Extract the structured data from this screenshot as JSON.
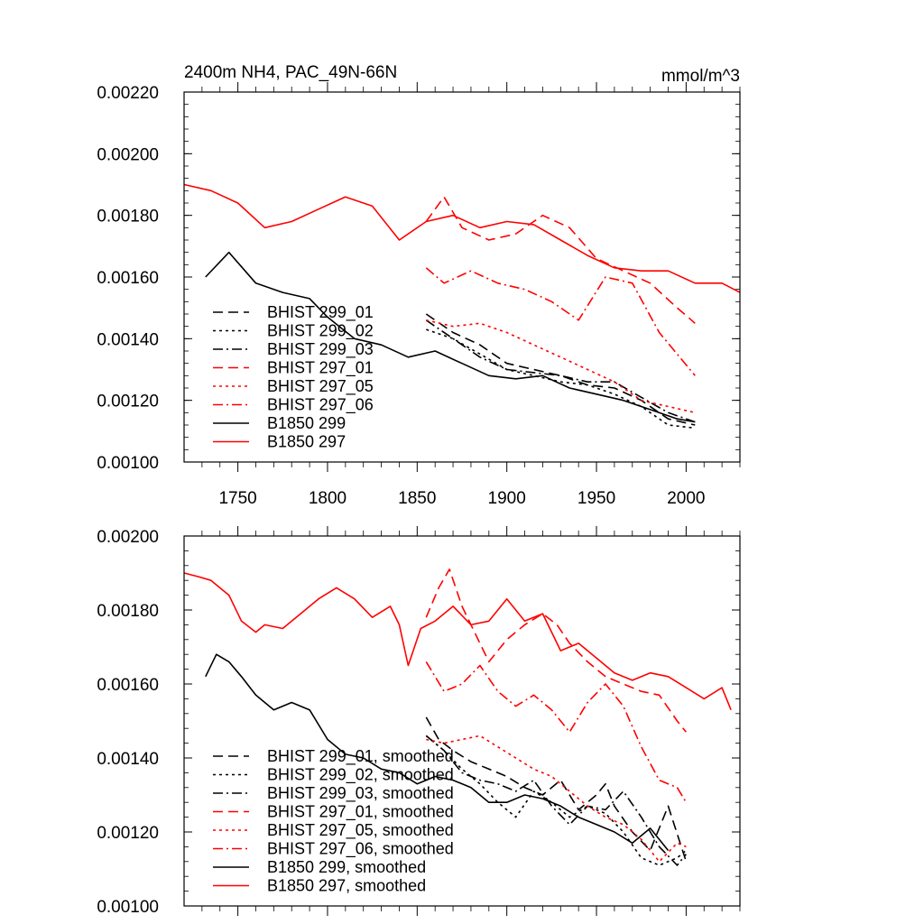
{
  "colors": {
    "black": "#000000",
    "red": "#ff0000"
  },
  "chart_data": [
    {
      "type": "line",
      "title": "2400m NH4, PAC_49N-66N",
      "units": "mmol/m^3",
      "xlim": [
        1720,
        2030
      ],
      "ylim": [
        0.001,
        0.0022
      ],
      "xticks": [
        1750,
        1800,
        1850,
        1900,
        1950,
        2000
      ],
      "xtick_labels": [
        "1750",
        "1800",
        "1850",
        "1900",
        "1950",
        "2000"
      ],
      "yticks": [
        0.001,
        0.0012,
        0.0014,
        0.0016,
        0.0018,
        0.002,
        0.0022
      ],
      "ytick_labels": [
        "0.00100",
        "0.00120",
        "0.00140",
        "0.00160",
        "0.00180",
        "0.00200",
        "0.00220"
      ],
      "legend_position": "lower-left",
      "series": [
        {
          "name": "BHIST 299_01",
          "color": "black",
          "dash": "dashed",
          "x": [
            1855,
            1870,
            1885,
            1900,
            1915,
            1930,
            1945,
            1960,
            1975,
            1990,
            2005
          ],
          "y": [
            0.00148,
            0.00142,
            0.00138,
            0.00132,
            0.0013,
            0.00128,
            0.00125,
            0.00124,
            0.0012,
            0.00114,
            0.00112
          ]
        },
        {
          "name": "BHIST 299_02",
          "color": "black",
          "dash": "dotted",
          "x": [
            1855,
            1870,
            1885,
            1900,
            1915,
            1930,
            1945,
            1960,
            1975,
            1990,
            2005
          ],
          "y": [
            0.00143,
            0.0014,
            0.00135,
            0.0013,
            0.00128,
            0.00126,
            0.00125,
            0.00122,
            0.00118,
            0.00112,
            0.00111
          ]
        },
        {
          "name": "BHIST 299_03",
          "color": "black",
          "dash": "dashdot",
          "x": [
            1855,
            1870,
            1885,
            1900,
            1915,
            1930,
            1945,
            1960,
            1975,
            1990,
            2005
          ],
          "y": [
            0.00146,
            0.0014,
            0.00134,
            0.0013,
            0.00129,
            0.00128,
            0.00126,
            0.00126,
            0.00121,
            0.00116,
            0.00113
          ]
        },
        {
          "name": "BHIST 297_01",
          "color": "red",
          "dash": "dashed",
          "x": [
            1855,
            1865,
            1875,
            1890,
            1905,
            1920,
            1935,
            1950,
            1965,
            1980,
            1995,
            2005
          ],
          "y": [
            0.00178,
            0.00186,
            0.00176,
            0.00172,
            0.00174,
            0.0018,
            0.00176,
            0.00166,
            0.00162,
            0.00158,
            0.0015,
            0.00145
          ]
        },
        {
          "name": "BHIST 297_05",
          "color": "red",
          "dash": "dotted",
          "x": [
            1855,
            1870,
            1885,
            1900,
            1915,
            1930,
            1945,
            1960,
            1975,
            1990,
            2005
          ],
          "y": [
            0.00146,
            0.00144,
            0.00145,
            0.00142,
            0.00138,
            0.00134,
            0.0013,
            0.00126,
            0.0012,
            0.00118,
            0.00116
          ]
        },
        {
          "name": "BHIST 297_06",
          "color": "red",
          "dash": "dashdot",
          "x": [
            1855,
            1865,
            1880,
            1895,
            1910,
            1925,
            1940,
            1955,
            1970,
            1985,
            2005
          ],
          "y": [
            0.00163,
            0.00158,
            0.00162,
            0.00158,
            0.00156,
            0.00152,
            0.00146,
            0.0016,
            0.00158,
            0.00142,
            0.00128
          ]
        },
        {
          "name": "B1850 299",
          "color": "black",
          "dash": "solid",
          "x": [
            1732,
            1745,
            1760,
            1775,
            1790,
            1800,
            1815,
            1830,
            1845,
            1860,
            1875,
            1890,
            1905,
            1920,
            1935,
            1950,
            1965,
            1980,
            1995,
            2005
          ],
          "y": [
            0.0016,
            0.00168,
            0.00158,
            0.00155,
            0.00153,
            0.00147,
            0.0014,
            0.00138,
            0.00134,
            0.00136,
            0.00132,
            0.00128,
            0.00127,
            0.00128,
            0.00124,
            0.00122,
            0.0012,
            0.00117,
            0.00114,
            0.00113
          ]
        },
        {
          "name": "B1850 297",
          "color": "red",
          "dash": "solid",
          "x": [
            1720,
            1735,
            1750,
            1765,
            1780,
            1795,
            1810,
            1825,
            1840,
            1855,
            1870,
            1885,
            1900,
            1915,
            1930,
            1945,
            1960,
            1975,
            1990,
            2005,
            2020,
            2030
          ],
          "y": [
            0.0019,
            0.00188,
            0.00184,
            0.00176,
            0.00178,
            0.00182,
            0.00186,
            0.00183,
            0.00172,
            0.00178,
            0.0018,
            0.00176,
            0.00178,
            0.00177,
            0.00172,
            0.00167,
            0.00163,
            0.00162,
            0.00162,
            0.00158,
            0.00158,
            0.00155
          ]
        }
      ]
    },
    {
      "type": "line",
      "title": "",
      "xlim": [
        1720,
        2030
      ],
      "ylim": [
        0.001,
        0.002
      ],
      "xticks": [
        1750,
        1800,
        1850,
        1900,
        1950,
        2000
      ],
      "xtick_labels": [],
      "yticks": [
        0.001,
        0.0012,
        0.0014,
        0.0016,
        0.0018,
        0.002
      ],
      "ytick_labels": [
        "0.00100",
        "0.00120",
        "0.00140",
        "0.00160",
        "0.00180",
        "0.00200"
      ],
      "legend_position": "lower-left",
      "series": [
        {
          "name": "BHIST 299_01, smoothed",
          "color": "black",
          "dash": "dashed",
          "x": [
            1855,
            1862,
            1870,
            1880,
            1890,
            1900,
            1910,
            1920,
            1930,
            1940,
            1950,
            1955,
            1960,
            1970,
            1980,
            1990,
            2000
          ],
          "y": [
            0.00151,
            0.00145,
            0.00142,
            0.00139,
            0.00137,
            0.00135,
            0.00132,
            0.0013,
            0.00134,
            0.00126,
            0.0013,
            0.00133,
            0.00127,
            0.0012,
            0.00115,
            0.00127,
            0.00112
          ]
        },
        {
          "name": "BHIST 299_02, smoothed",
          "color": "black",
          "dash": "dotted",
          "x": [
            1855,
            1865,
            1875,
            1885,
            1895,
            1905,
            1915,
            1925,
            1935,
            1945,
            1955,
            1965,
            1975,
            1985,
            1995,
            2000
          ],
          "y": [
            0.00146,
            0.00142,
            0.00137,
            0.00133,
            0.00128,
            0.00124,
            0.00131,
            0.00128,
            0.00124,
            0.00127,
            0.00125,
            0.0012,
            0.00113,
            0.00111,
            0.00113,
            0.00115
          ]
        },
        {
          "name": "BHIST 299_03, smoothed",
          "color": "black",
          "dash": "dashdot",
          "x": [
            1855,
            1865,
            1875,
            1885,
            1895,
            1905,
            1915,
            1925,
            1935,
            1945,
            1955,
            1965,
            1975,
            1985,
            1995,
            2000
          ],
          "y": [
            0.00146,
            0.00142,
            0.00136,
            0.00134,
            0.00133,
            0.00131,
            0.00134,
            0.00127,
            0.00122,
            0.00127,
            0.00126,
            0.00131,
            0.00124,
            0.00116,
            0.00111,
            0.00114
          ]
        },
        {
          "name": "BHIST 297_01, smoothed",
          "color": "red",
          "dash": "dashed",
          "x": [
            1855,
            1862,
            1868,
            1875,
            1882,
            1890,
            1900,
            1910,
            1920,
            1928,
            1935,
            1945,
            1955,
            1965,
            1975,
            1985,
            1995,
            2000
          ],
          "y": [
            0.00178,
            0.00186,
            0.00191,
            0.00181,
            0.00174,
            0.00166,
            0.00172,
            0.00176,
            0.00179,
            0.00176,
            0.00171,
            0.00166,
            0.00162,
            0.0016,
            0.00158,
            0.00157,
            0.0015,
            0.00147
          ]
        },
        {
          "name": "BHIST 297_05, smoothed",
          "color": "red",
          "dash": "dotted",
          "x": [
            1855,
            1865,
            1875,
            1885,
            1895,
            1905,
            1915,
            1925,
            1935,
            1945,
            1955,
            1965,
            1975,
            1985,
            1995,
            2000
          ],
          "y": [
            0.00145,
            0.00144,
            0.00145,
            0.00146,
            0.00143,
            0.0014,
            0.00137,
            0.00135,
            0.00131,
            0.00127,
            0.00124,
            0.00122,
            0.00118,
            0.00112,
            0.00117,
            0.00116
          ]
        },
        {
          "name": "BHIST 297_06, smoothed",
          "color": "red",
          "dash": "dashdot",
          "x": [
            1855,
            1865,
            1875,
            1885,
            1895,
            1905,
            1915,
            1925,
            1935,
            1945,
            1955,
            1965,
            1975,
            1985,
            1995,
            2000
          ],
          "y": [
            0.00166,
            0.00158,
            0.0016,
            0.00165,
            0.00158,
            0.00154,
            0.00157,
            0.00153,
            0.00147,
            0.00155,
            0.0016,
            0.00154,
            0.00143,
            0.00134,
            0.00132,
            0.00128
          ]
        },
        {
          "name": "B1850 299, smoothed",
          "color": "black",
          "dash": "solid",
          "x": [
            1732,
            1738,
            1745,
            1752,
            1760,
            1770,
            1780,
            1790,
            1800,
            1810,
            1820,
            1830,
            1840,
            1850,
            1860,
            1870,
            1880,
            1890,
            1900,
            1910,
            1920,
            1930,
            1940,
            1950,
            1960,
            1970,
            1980,
            1990
          ],
          "y": [
            0.00162,
            0.00168,
            0.00166,
            0.00162,
            0.00157,
            0.00153,
            0.00155,
            0.00153,
            0.00145,
            0.00141,
            0.0014,
            0.00137,
            0.00136,
            0.00133,
            0.00135,
            0.00134,
            0.00132,
            0.00128,
            0.00128,
            0.0013,
            0.00129,
            0.00127,
            0.00124,
            0.00122,
            0.0012,
            0.00117,
            0.00121,
            0.00115
          ]
        },
        {
          "name": "B1850 297, smoothed",
          "color": "red",
          "dash": "solid",
          "x": [
            1720,
            1728,
            1735,
            1745,
            1752,
            1760,
            1765,
            1775,
            1785,
            1795,
            1805,
            1815,
            1825,
            1835,
            1840,
            1845,
            1852,
            1860,
            1870,
            1880,
            1890,
            1900,
            1910,
            1920,
            1930,
            1940,
            1950,
            1960,
            1970,
            1980,
            1990,
            2000,
            2010,
            2020,
            2025
          ],
          "y": [
            0.0019,
            0.00189,
            0.00188,
            0.00184,
            0.00177,
            0.00174,
            0.00176,
            0.00175,
            0.00179,
            0.00183,
            0.00186,
            0.00183,
            0.00178,
            0.00181,
            0.00176,
            0.00165,
            0.00175,
            0.00177,
            0.00181,
            0.00176,
            0.00177,
            0.00183,
            0.00177,
            0.00179,
            0.00169,
            0.00171,
            0.00167,
            0.00163,
            0.00161,
            0.00163,
            0.00162,
            0.00159,
            0.00156,
            0.00159,
            0.00153
          ]
        }
      ]
    }
  ]
}
